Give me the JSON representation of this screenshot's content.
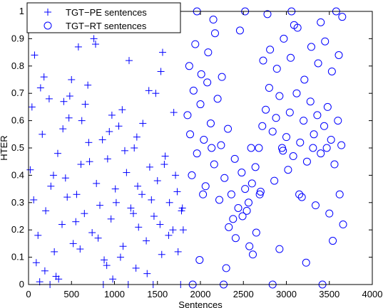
{
  "chart_data": {
    "type": "scatter",
    "xlabel": "Sentences",
    "ylabel": "HTER",
    "xlim": [
      0,
      4000
    ],
    "ylim": [
      0,
      1
    ],
    "x_ticks": [
      "0",
      "500",
      "1000",
      "1500",
      "2000",
      "2500",
      "3000",
      "3500",
      "4000"
    ],
    "y_ticks": [
      "0",
      "0.1",
      "0.2",
      "0.3",
      "0.4",
      "0.5",
      "0.6",
      "0.7",
      "0.8",
      "0.9",
      "1"
    ],
    "legend_position": "top-left",
    "grid": false,
    "colors": {
      "series": "#0000ff",
      "axis": "#000000"
    },
    "series": [
      {
        "name": "TGT−PE sentences",
        "marker": "plus",
        "x": [
          20,
          60,
          110,
          160,
          200,
          260,
          300,
          340,
          390,
          430,
          470,
          520,
          560,
          610,
          650,
          700,
          740,
          790,
          830,
          880,
          920,
          960,
          1010,
          1050,
          1100,
          1140,
          1190,
          1230,
          1280,
          1320,
          1370,
          1410,
          1460,
          1500,
          1550,
          1590,
          1640,
          1680,
          1730,
          1780,
          40,
          90,
          140,
          190,
          240,
          290,
          350,
          400,
          450,
          500,
          550,
          600,
          660,
          710,
          760,
          810,
          860,
          910,
          970,
          1020,
          1070,
          1120,
          1170,
          1220,
          1270,
          1330,
          1380,
          1430,
          1480,
          1530,
          1580,
          1630,
          1690,
          1740,
          1790,
          70,
          180,
          320,
          480,
          620,
          780,
          940,
          1090,
          1250,
          1400,
          1560,
          1710,
          130,
          410,
          690,
          980,
          1260,
          1540,
          1800,
          250,
          580,
          870,
          1160,
          1450,
          1770
        ],
        "y": [
          0.42,
          0.31,
          0.18,
          0.55,
          0.27,
          0.36,
          0.12,
          0.48,
          0.22,
          0.39,
          0.61,
          0.15,
          0.33,
          0.44,
          0.26,
          0.52,
          0.19,
          0.37,
          0.29,
          0.09,
          0.46,
          0.24,
          0.35,
          0.58,
          0.14,
          0.41,
          0.28,
          0.5,
          0.21,
          0.33,
          0.16,
          0.43,
          0.25,
          0.38,
          0.11,
          0.47,
          0.3,
          0.2,
          0.34,
          0.27,
          0.65,
          0.08,
          0.72,
          0.05,
          0.68,
          0.4,
          0.02,
          0.57,
          0.32,
          0.75,
          0.23,
          0.13,
          0.66,
          0.45,
          0.9,
          0.17,
          0.53,
          0.07,
          0.62,
          0.3,
          0.1,
          0.49,
          0.82,
          0.26,
          0.36,
          0.59,
          0.04,
          0.31,
          0.7,
          0.22,
          0.44,
          0.18,
          0.63,
          0.12,
          0.28,
          0.84,
          0.76,
          0.03,
          0.69,
          0.6,
          0.88,
          0.56,
          0.64,
          0.06,
          0.71,
          0.85,
          0.4,
          0.01,
          0.67,
          0.73,
          0.02,
          0.54,
          0.78,
          0.2,
          0.0,
          0.87,
          0.0,
          0.0,
          0.0,
          0.0
        ]
      },
      {
        "name": "TGT−RT sentences",
        "marker": "circle",
        "x": [
          1850,
          1880,
          1920,
          1960,
          2000,
          2040,
          2080,
          2120,
          2160,
          2200,
          2240,
          2280,
          2320,
          2360,
          2400,
          2440,
          2480,
          2520,
          2560,
          2600,
          2640,
          2680,
          2720,
          2760,
          2800,
          2840,
          2880,
          2920,
          2960,
          3000,
          3040,
          3080,
          3120,
          3160,
          3200,
          3240,
          3280,
          3320,
          3360,
          3400,
          3440,
          3480,
          3520,
          3560,
          3600,
          3640,
          1870,
          1940,
          2010,
          2090,
          2170,
          2250,
          2330,
          2410,
          2490,
          2570,
          2650,
          2730,
          2810,
          2890,
          2970,
          3050,
          3130,
          3210,
          3290,
          3370,
          3450,
          3530,
          3610,
          1900,
          2060,
          2220,
          2380,
          2540,
          2700,
          2860,
          3020,
          3180,
          3340,
          3500,
          3660,
          1990,
          2300,
          2610,
          2920,
          3230,
          3540,
          2150,
          2460,
          2780,
          3090,
          3400,
          3650,
          1960,
          2520,
          3060,
          3580,
          2270,
          2840,
          3420,
          1910,
          2130,
          2590,
          2950,
          3310,
          3470,
          2030,
          2690,
          3150,
          3620
        ],
        "y": [
          0.62,
          0.55,
          0.71,
          0.48,
          0.66,
          0.53,
          0.74,
          0.59,
          0.44,
          0.68,
          0.51,
          0.39,
          0.57,
          0.33,
          0.46,
          0.28,
          0.41,
          0.35,
          0.3,
          0.37,
          0.43,
          0.5,
          0.58,
          0.64,
          0.72,
          0.56,
          0.61,
          0.69,
          0.49,
          0.54,
          0.63,
          0.47,
          0.7,
          0.52,
          0.6,
          0.45,
          0.67,
          0.55,
          0.62,
          0.48,
          0.58,
          0.65,
          0.53,
          0.44,
          0.6,
          0.51,
          0.8,
          0.88,
          0.77,
          0.85,
          0.92,
          0.76,
          0.21,
          0.17,
          0.25,
          0.14,
          0.19,
          0.82,
          0.86,
          0.79,
          0.9,
          0.83,
          0.94,
          0.75,
          0.87,
          0.81,
          0.89,
          0.78,
          0.84,
          0.4,
          0.36,
          0.31,
          0.24,
          0.27,
          0.34,
          0.38,
          0.42,
          0.32,
          0.29,
          0.26,
          0.22,
          0.09,
          0.06,
          0.11,
          0.13,
          0.08,
          0.16,
          0.97,
          0.93,
          0.99,
          0.95,
          0.96,
          0.98,
          1.0,
          1.0,
          1.0,
          1.0,
          0.0,
          0.0,
          0.0,
          0.0,
          0.5,
          0.5,
          0.5,
          0.5,
          0.5,
          0.33,
          0.33,
          0.33,
          0.33
        ]
      }
    ]
  }
}
